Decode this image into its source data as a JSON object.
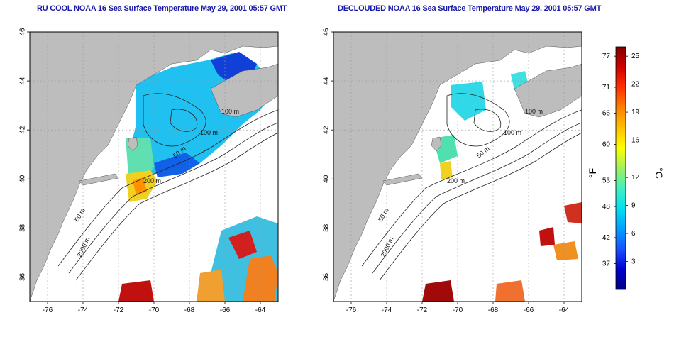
{
  "panels": [
    {
      "title": "RU COOL NOAA 16 Sea Surface Temperature May 29, 2001 05:57 GMT",
      "variant": "full"
    },
    {
      "title": "DECLOUDED NOAA 16 Sea Surface Temperature May 29, 2001 05:57 GMT",
      "variant": "declouded"
    }
  ],
  "map": {
    "lon_range": [
      -77,
      -63
    ],
    "lat_range": [
      35,
      46
    ],
    "x_ticks": [
      "-76",
      "-74",
      "-72",
      "-70",
      "-68",
      "-66",
      "-64"
    ],
    "x_tick_values": [
      -76,
      -74,
      -72,
      -70,
      -68,
      -66,
      -64
    ],
    "y_ticks": [
      "36",
      "38",
      "40",
      "42",
      "44",
      "46"
    ],
    "y_tick_values": [
      36,
      38,
      40,
      42,
      44,
      46
    ],
    "land_color": "#bdbdbd",
    "ocean_color": "#ffffff",
    "contour_labels": [
      "100 m",
      "100 m",
      "50 m",
      "200 m",
      "50 m",
      "2000 m"
    ]
  },
  "colorbar": {
    "colors": [
      "#000080",
      "#0000d0",
      "#1a50ff",
      "#00a0ff",
      "#00e0f0",
      "#40f0c0",
      "#a0f060",
      "#ffff00",
      "#ffc000",
      "#ff8000",
      "#ff3000",
      "#d00000",
      "#800000"
    ],
    "fahrenheit_labels": [
      "77",
      "71",
      "66",
      "60",
      "53",
      "48",
      "42",
      "37"
    ],
    "fahrenheit_values": [
      77,
      71,
      66,
      60,
      53,
      48,
      42,
      37
    ],
    "celsius_labels": [
      "25",
      "22",
      "19",
      "16",
      "12",
      "9",
      "6",
      "3"
    ],
    "celsius_values": [
      25,
      22,
      19,
      16,
      12,
      9,
      6,
      3
    ],
    "unit_f": "°F",
    "unit_c": "°C",
    "range_c": [
      0,
      26
    ]
  }
}
